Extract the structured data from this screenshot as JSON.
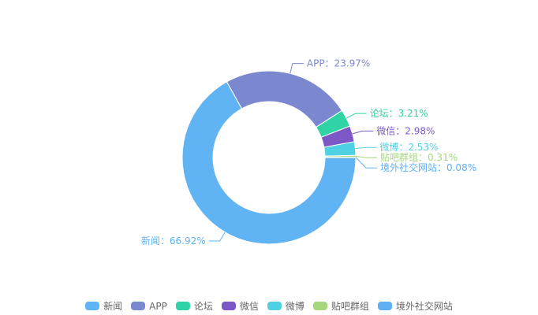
{
  "chart_data": {
    "type": "pie",
    "variant": "donut",
    "categories": [
      "新闻",
      "APP",
      "论坛",
      "微信",
      "微博",
      "贴吧群组",
      "境外社交网站"
    ],
    "values": [
      66.92,
      23.97,
      3.21,
      2.98,
      2.53,
      0.31,
      0.08
    ],
    "value_unit": "%",
    "label_separator": "：",
    "colors": [
      "#60b4f4",
      "#7b88cf",
      "#2fd3a4",
      "#7c58c7",
      "#4fd0e3",
      "#a6d67e",
      "#5fb0f3"
    ],
    "legend_position": "bottom-center",
    "title": ""
  }
}
